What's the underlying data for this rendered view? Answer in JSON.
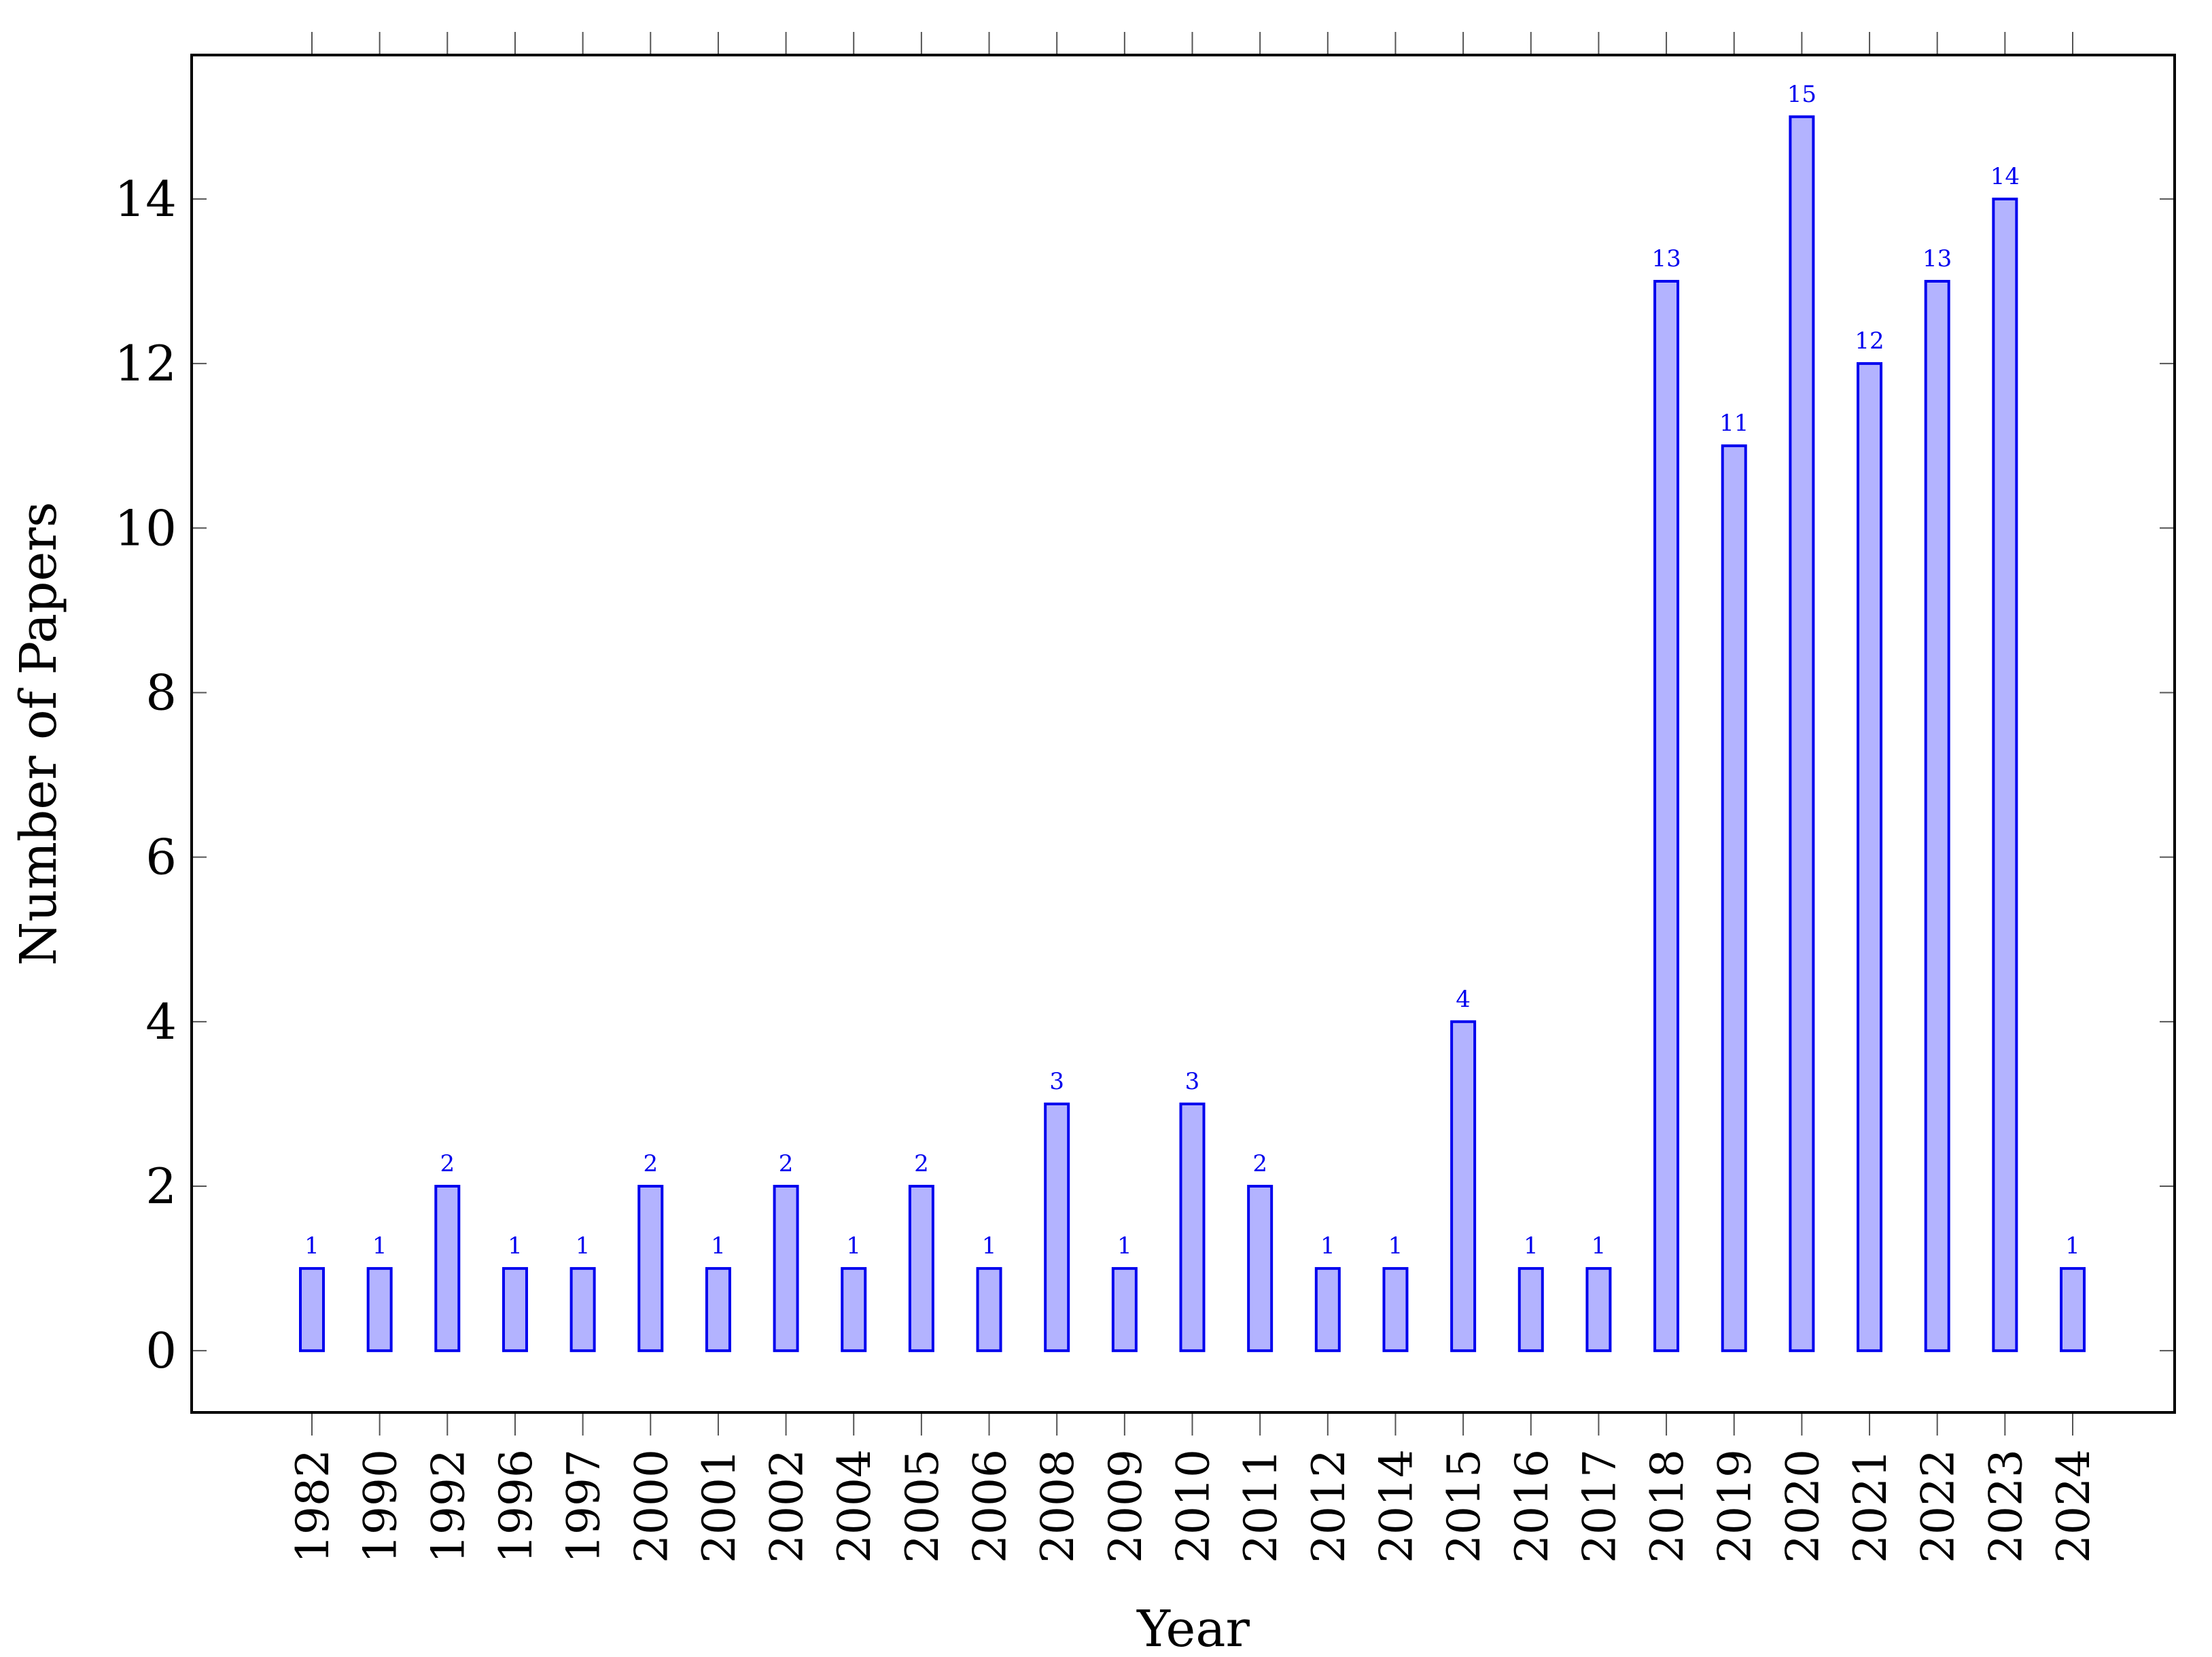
{
  "chart_data": {
    "type": "bar",
    "categories": [
      "1982",
      "1990",
      "1992",
      "1996",
      "1997",
      "2000",
      "2001",
      "2002",
      "2004",
      "2005",
      "2006",
      "2008",
      "2009",
      "2010",
      "2011",
      "2012",
      "2014",
      "2015",
      "2016",
      "2017",
      "2018",
      "2019",
      "2020",
      "2021",
      "2022",
      "2023",
      "2024"
    ],
    "values": [
      1,
      1,
      2,
      1,
      1,
      2,
      1,
      2,
      1,
      2,
      1,
      3,
      1,
      3,
      2,
      1,
      1,
      4,
      1,
      1,
      13,
      11,
      15,
      12,
      13,
      14,
      1
    ],
    "title": "",
    "xlabel": "Year",
    "ylabel": "Number of Papers",
    "ylim": [
      -0.75,
      15.75
    ],
    "yticks": [
      0,
      2,
      4,
      6,
      8,
      10,
      12,
      14
    ],
    "grid": false,
    "data_labels": true,
    "colors": {
      "bar_fill": "#b3b3ff",
      "bar_stroke": "#0000ee",
      "label_color": "#0000ee"
    }
  }
}
